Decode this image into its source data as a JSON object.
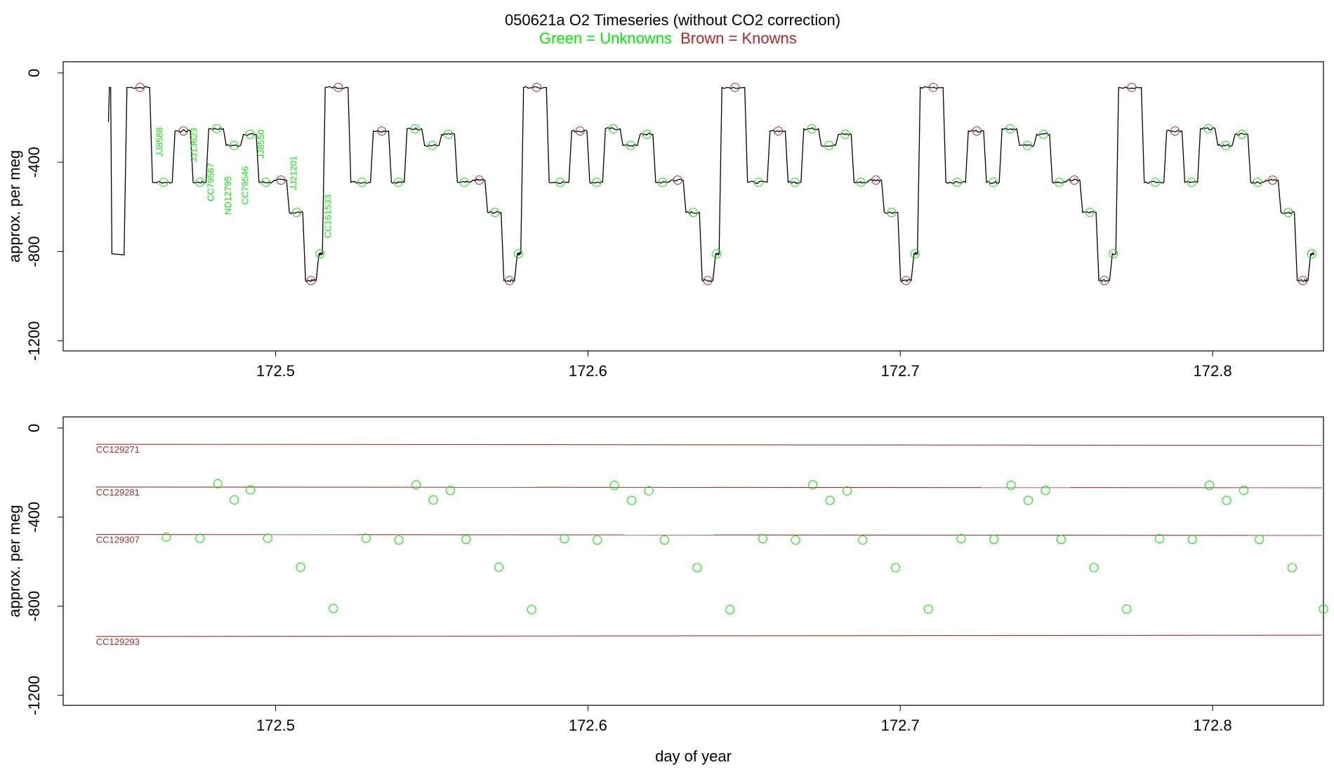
{
  "title": "050621a   O2 Timeseries (without CO2 correction)",
  "subtitle": {
    "green_text": "Green = Unknowns",
    "brown_text": "Brown = Knowns",
    "green_color": "#00ee00",
    "brown_color": "#aa2a2a"
  },
  "chart_data": [
    {
      "type": "line",
      "panel": "top",
      "title": "",
      "xlabel": "",
      "ylabel": "approx. per meg",
      "xlim": [
        172.432,
        172.8355
      ],
      "ylim": [
        -1245,
        50
      ],
      "x_ticks": [
        172.5,
        172.6,
        172.7,
        172.8
      ],
      "x_tick_labels": [
        "172.5",
        "172.6",
        "172.7",
        "172.8"
      ],
      "y_ticks": [
        0,
        -400,
        -800,
        -1200
      ],
      "y_tick_labels": [
        "0",
        "-400",
        "-800",
        "-1200"
      ],
      "grid": false,
      "legend": "none",
      "trace_color": "#000000",
      "trace_start": [
        [
          172.4465,
          -220
        ],
        [
          172.4468,
          -65
        ],
        [
          172.4472,
          -65
        ],
        [
          172.4476,
          -810
        ],
        [
          172.4515,
          -815
        ]
      ],
      "cycle_start": 172.4515,
      "cycle_period": 0.0635,
      "cycles": 6,
      "cycle_steps": [
        {
          "offset": 0.0,
          "value": -65,
          "kind": "known"
        },
        {
          "offset": 0.0082,
          "value": -490,
          "kind": "unknown"
        },
        {
          "offset": 0.0154,
          "value": -260,
          "kind": "known"
        },
        {
          "offset": 0.0212,
          "value": -490,
          "kind": "unknown"
        },
        {
          "offset": 0.0262,
          "value": -250,
          "kind": "unknown"
        },
        {
          "offset": 0.0318,
          "value": -325,
          "kind": "unknown"
        },
        {
          "offset": 0.0373,
          "value": -275,
          "kind": "unknown"
        },
        {
          "offset": 0.0423,
          "value": -490,
          "kind": "unknown"
        },
        {
          "offset": 0.0473,
          "value": -480,
          "kind": "known"
        },
        {
          "offset": 0.052,
          "value": -625,
          "kind": "unknown"
        },
        {
          "offset": 0.0572,
          "value": -930,
          "kind": "known"
        },
        {
          "offset": 0.0615,
          "value": -810,
          "kind": "unknown"
        }
      ],
      "trace_end": 172.835,
      "sample_labels": [
        {
          "text": "JJ8588",
          "x": 172.463,
          "y": -375
        },
        {
          "text": "JJ13623",
          "x": 172.474,
          "y": -400
        },
        {
          "text": "CC79567",
          "x": 172.4795,
          "y": -575
        },
        {
          "text": "ND12795",
          "x": 172.485,
          "y": -635
        },
        {
          "text": "CC79546",
          "x": 172.4905,
          "y": -590
        },
        {
          "text": "JJ8550",
          "x": 172.4955,
          "y": -385
        },
        {
          "text": "JJ21201",
          "x": 172.506,
          "y": -525
        },
        {
          "text": "CC161533",
          "x": 172.517,
          "y": -740
        }
      ],
      "marker_colors": {
        "known": "#aa2a2a",
        "unknown": "#00ee00"
      }
    },
    {
      "type": "scatter",
      "panel": "bottom",
      "title": "",
      "xlabel": "day of year",
      "ylabel": "approx. per meg",
      "xlim": [
        172.432,
        172.8355
      ],
      "ylim": [
        -1245,
        50
      ],
      "x_ticks": [
        172.5,
        172.6,
        172.7,
        172.8
      ],
      "x_tick_labels": [
        "172.5",
        "172.6",
        "172.7",
        "172.8"
      ],
      "y_ticks": [
        0,
        -400,
        -800,
        -1200
      ],
      "y_tick_labels": [
        "0",
        "-400",
        "-800",
        "-1200"
      ],
      "grid": false,
      "legend": "none",
      "reference_lines": [
        {
          "label": "CC129271",
          "x_start": 172.4425,
          "x_end": 172.835,
          "y_start": -73,
          "y_end": -78,
          "color": "#aa2a2a"
        },
        {
          "label": "CC129281",
          "x_start": 172.4425,
          "x_end": 172.835,
          "y_start": -265,
          "y_end": -268,
          "color": "#aa2a2a"
        },
        {
          "label": "CC129307",
          "x_start": 172.4425,
          "x_end": 172.835,
          "y_start": -478,
          "y_end": -482,
          "color": "#aa2a2a"
        },
        {
          "label": "CC129293",
          "x_start": 172.4425,
          "x_end": 172.835,
          "y_start": -936,
          "y_end": -930,
          "color": "#aa2a2a"
        }
      ],
      "unknown_points": [
        {
          "x": 172.465,
          "y": -490
        },
        {
          "x": 172.4758,
          "y": -495
        },
        {
          "x": 172.4815,
          "y": -250
        },
        {
          "x": 172.4868,
          "y": -323
        },
        {
          "x": 172.492,
          "y": -278
        },
        {
          "x": 172.4975,
          "y": -495
        },
        {
          "x": 172.508,
          "y": -625
        },
        {
          "x": 172.5185,
          "y": -810
        },
        {
          "x": 172.529,
          "y": -495
        },
        {
          "x": 172.5395,
          "y": -503
        },
        {
          "x": 172.545,
          "y": -255
        },
        {
          "x": 172.5505,
          "y": -323
        },
        {
          "x": 172.556,
          "y": -280
        },
        {
          "x": 172.561,
          "y": -500
        },
        {
          "x": 172.5715,
          "y": -625
        },
        {
          "x": 172.582,
          "y": -815
        },
        {
          "x": 172.5925,
          "y": -497
        },
        {
          "x": 172.603,
          "y": -503
        },
        {
          "x": 172.6085,
          "y": -257
        },
        {
          "x": 172.614,
          "y": -325
        },
        {
          "x": 172.6195,
          "y": -282
        },
        {
          "x": 172.6245,
          "y": -503
        },
        {
          "x": 172.635,
          "y": -627
        },
        {
          "x": 172.6455,
          "y": -815
        },
        {
          "x": 172.656,
          "y": -497
        },
        {
          "x": 172.6665,
          "y": -503
        },
        {
          "x": 172.672,
          "y": -255
        },
        {
          "x": 172.6775,
          "y": -325
        },
        {
          "x": 172.683,
          "y": -282
        },
        {
          "x": 172.688,
          "y": -503
        },
        {
          "x": 172.6985,
          "y": -627
        },
        {
          "x": 172.709,
          "y": -813
        },
        {
          "x": 172.7195,
          "y": -497
        },
        {
          "x": 172.73,
          "y": -500
        },
        {
          "x": 172.7355,
          "y": -257
        },
        {
          "x": 172.741,
          "y": -325
        },
        {
          "x": 172.7465,
          "y": -280
        },
        {
          "x": 172.7515,
          "y": -500
        },
        {
          "x": 172.762,
          "y": -627
        },
        {
          "x": 172.7725,
          "y": -813
        },
        {
          "x": 172.783,
          "y": -497
        },
        {
          "x": 172.7935,
          "y": -500
        },
        {
          "x": 172.799,
          "y": -257
        },
        {
          "x": 172.8045,
          "y": -325
        },
        {
          "x": 172.81,
          "y": -280
        },
        {
          "x": 172.815,
          "y": -500
        },
        {
          "x": 172.8255,
          "y": -627
        },
        {
          "x": 172.8355,
          "y": -813
        }
      ],
      "point_color": "#00ee00"
    }
  ]
}
